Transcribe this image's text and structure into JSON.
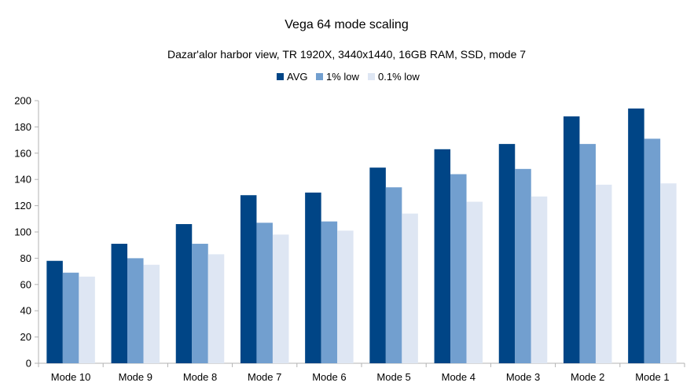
{
  "chart_data": {
    "type": "bar",
    "title": "Vega 64 mode scaling",
    "subtitle": "Dazar'alor harbor view, TR 1920X, 3440x1440, 16GB RAM, SSD, mode 7",
    "xlabel": "",
    "ylabel": "",
    "ylim": [
      0,
      200
    ],
    "yticks": [
      0,
      20,
      40,
      60,
      80,
      100,
      120,
      140,
      160,
      180,
      200
    ],
    "grid": false,
    "legend_position": "top-center",
    "categories": [
      "Mode 10",
      "Mode 9",
      "Mode 8",
      "Mode 7",
      "Mode 6",
      "Mode 5",
      "Mode 4",
      "Mode 3",
      "Mode 2",
      "Mode 1"
    ],
    "series": [
      {
        "name": "AVG",
        "color": "#004586",
        "values": [
          78,
          91,
          106,
          128,
          130,
          149,
          163,
          167,
          188,
          194
        ]
      },
      {
        "name": "1% low",
        "color": "#729fcf",
        "values": [
          69,
          80,
          91,
          107,
          108,
          134,
          144,
          148,
          167,
          171
        ]
      },
      {
        "name": "0.1% low",
        "color": "#dee6f3",
        "values": [
          66,
          75,
          83,
          98,
          101,
          114,
          123,
          127,
          136,
          137
        ]
      }
    ]
  }
}
